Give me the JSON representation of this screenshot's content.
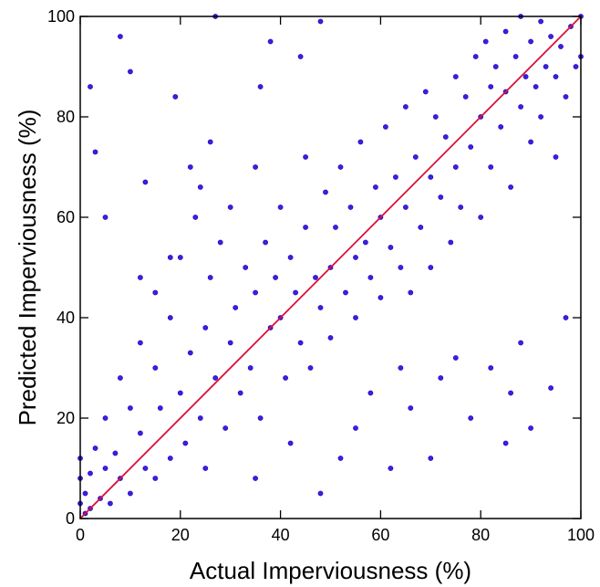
{
  "chart_data": {
    "type": "scatter",
    "title": "",
    "xlabel": "Actual Imperviousness (%)",
    "ylabel": "Predicted Imperviousness (%)",
    "xlim": [
      0,
      100
    ],
    "ylim": [
      0,
      100
    ],
    "xticks": [
      0,
      20,
      40,
      60,
      80,
      100
    ],
    "yticks": [
      0,
      20,
      40,
      60,
      80,
      100
    ],
    "grid": false,
    "legend": "none",
    "colors": {
      "points": "#3b1ee8",
      "point_edge": "#1a0aa8",
      "reference_line": "#d8103a"
    },
    "reference_line": {
      "from": [
        0,
        0
      ],
      "to": [
        100,
        100
      ]
    },
    "series": [
      {
        "points": [
          [
            0,
            3
          ],
          [
            0,
            8
          ],
          [
            0,
            12
          ],
          [
            1,
            1
          ],
          [
            1,
            5
          ],
          [
            2,
            2
          ],
          [
            2,
            9
          ],
          [
            3,
            14
          ],
          [
            4,
            4
          ],
          [
            5,
            10
          ],
          [
            5,
            20
          ],
          [
            6,
            3
          ],
          [
            7,
            13
          ],
          [
            8,
            28
          ],
          [
            8,
            8
          ],
          [
            10,
            22
          ],
          [
            10,
            5
          ],
          [
            12,
            17
          ],
          [
            12,
            35
          ],
          [
            13,
            10
          ],
          [
            15,
            30
          ],
          [
            15,
            45
          ],
          [
            15,
            8
          ],
          [
            16,
            22
          ],
          [
            18,
            12
          ],
          [
            18,
            40
          ],
          [
            20,
            25
          ],
          [
            20,
            52
          ],
          [
            21,
            15
          ],
          [
            22,
            33
          ],
          [
            23,
            60
          ],
          [
            24,
            20
          ],
          [
            25,
            38
          ],
          [
            25,
            10
          ],
          [
            26,
            48
          ],
          [
            27,
            28
          ],
          [
            28,
            55
          ],
          [
            29,
            18
          ],
          [
            30,
            35
          ],
          [
            30,
            62
          ],
          [
            31,
            42
          ],
          [
            32,
            25
          ],
          [
            33,
            50
          ],
          [
            34,
            30
          ],
          [
            35,
            45
          ],
          [
            35,
            70
          ],
          [
            36,
            20
          ],
          [
            37,
            55
          ],
          [
            38,
            38
          ],
          [
            39,
            48
          ],
          [
            40,
            40
          ],
          [
            40,
            62
          ],
          [
            41,
            28
          ],
          [
            42,
            52
          ],
          [
            43,
            45
          ],
          [
            44,
            35
          ],
          [
            45,
            58
          ],
          [
            45,
            72
          ],
          [
            46,
            30
          ],
          [
            47,
            48
          ],
          [
            48,
            42
          ],
          [
            49,
            65
          ],
          [
            50,
            50
          ],
          [
            50,
            36
          ],
          [
            51,
            58
          ],
          [
            52,
            70
          ],
          [
            53,
            45
          ],
          [
            54,
            62
          ],
          [
            55,
            52
          ],
          [
            55,
            40
          ],
          [
            56,
            75
          ],
          [
            57,
            55
          ],
          [
            58,
            48
          ],
          [
            59,
            66
          ],
          [
            60,
            60
          ],
          [
            60,
            44
          ],
          [
            61,
            78
          ],
          [
            62,
            54
          ],
          [
            63,
            68
          ],
          [
            64,
            50
          ],
          [
            65,
            62
          ],
          [
            65,
            82
          ],
          [
            66,
            45
          ],
          [
            67,
            72
          ],
          [
            68,
            58
          ],
          [
            69,
            85
          ],
          [
            70,
            68
          ],
          [
            70,
            50
          ],
          [
            71,
            80
          ],
          [
            72,
            64
          ],
          [
            73,
            76
          ],
          [
            74,
            55
          ],
          [
            75,
            88
          ],
          [
            75,
            70
          ],
          [
            76,
            62
          ],
          [
            77,
            84
          ],
          [
            78,
            74
          ],
          [
            79,
            92
          ],
          [
            80,
            80
          ],
          [
            80,
            60
          ],
          [
            81,
            95
          ],
          [
            82,
            86
          ],
          [
            82,
            70
          ],
          [
            83,
            90
          ],
          [
            84,
            78
          ],
          [
            85,
            97
          ],
          [
            85,
            85
          ],
          [
            86,
            66
          ],
          [
            87,
            92
          ],
          [
            88,
            82
          ],
          [
            88,
            100
          ],
          [
            89,
            88
          ],
          [
            90,
            75
          ],
          [
            90,
            95
          ],
          [
            91,
            86
          ],
          [
            92,
            99
          ],
          [
            92,
            80
          ],
          [
            93,
            90
          ],
          [
            94,
            96
          ],
          [
            95,
            88
          ],
          [
            95,
            72
          ],
          [
            96,
            94
          ],
          [
            97,
            84
          ],
          [
            98,
            98
          ],
          [
            99,
            90
          ],
          [
            100,
            92
          ],
          [
            100,
            100
          ],
          [
            2,
            86
          ],
          [
            3,
            73
          ],
          [
            5,
            60
          ],
          [
            8,
            96
          ],
          [
            10,
            89
          ],
          [
            13,
            67
          ],
          [
            19,
            84
          ],
          [
            22,
            70
          ],
          [
            27,
            100
          ],
          [
            38,
            95
          ],
          [
            48,
            99
          ],
          [
            18,
            52
          ],
          [
            12,
            48
          ],
          [
            26,
            75
          ],
          [
            36,
            86
          ],
          [
            44,
            92
          ],
          [
            24,
            66
          ],
          [
            35,
            8
          ],
          [
            42,
            15
          ],
          [
            48,
            5
          ],
          [
            55,
            18
          ],
          [
            62,
            10
          ],
          [
            70,
            12
          ],
          [
            58,
            25
          ],
          [
            66,
            22
          ],
          [
            72,
            28
          ],
          [
            78,
            20
          ],
          [
            82,
            30
          ],
          [
            86,
            25
          ],
          [
            90,
            18
          ],
          [
            94,
            26
          ],
          [
            97,
            40
          ],
          [
            88,
            35
          ],
          [
            75,
            32
          ],
          [
            85,
            15
          ],
          [
            64,
            30
          ],
          [
            52,
            12
          ]
        ]
      }
    ]
  }
}
